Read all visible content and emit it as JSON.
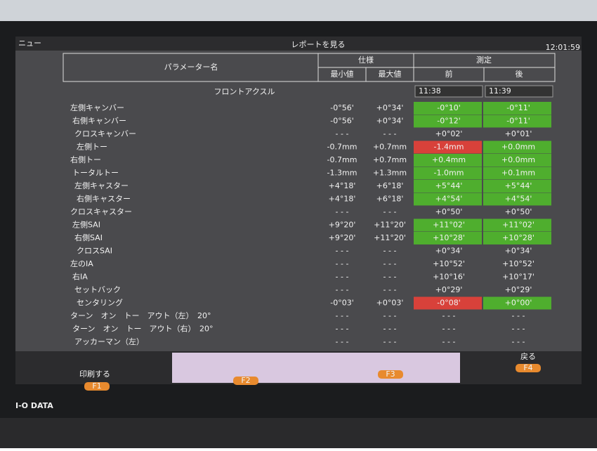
{
  "top_bar": {
    "menu": "ニュー",
    "title": "レポートを見る",
    "time": "12:01:59"
  },
  "header": {
    "param": "パラメーター名",
    "spec": "仕様",
    "min": "最小値",
    "max": "最大値",
    "measure": "測定",
    "before": "前",
    "after": "後"
  },
  "section": {
    "title": "フロントアクスル",
    "before_time": "11:38",
    "after_time": "11:39"
  },
  "rows": [
    {
      "name": "左側キャンバー",
      "min": "-0°56'",
      "max": "+0°34'",
      "before": "-0°10'",
      "after": "-0°11'",
      "before_status": "green",
      "after_status": "green"
    },
    {
      "name": "右側キャンバー",
      "min": "-0°56'",
      "max": "+0°34'",
      "before": "-0°12'",
      "after": "-0°11'",
      "before_status": "green",
      "after_status": "green"
    },
    {
      "name": "クロスキャンバー",
      "min": "- - -",
      "max": "- - -",
      "before": "+0°02'",
      "after": "+0°01'"
    },
    {
      "name": "左側トー",
      "min": "-0.7mm",
      "max": "+0.7mm",
      "before": "-1.4mm",
      "after": "+0.0mm",
      "before_status": "red",
      "after_status": "green"
    },
    {
      "name": "右側トー",
      "min": "-0.7mm",
      "max": "+0.7mm",
      "before": "+0.4mm",
      "after": "+0.0mm",
      "before_status": "green",
      "after_status": "green"
    },
    {
      "name": "トータルトー",
      "min": "-1.3mm",
      "max": "+1.3mm",
      "before": "-1.0mm",
      "after": "+0.1mm",
      "before_status": "green",
      "after_status": "green"
    },
    {
      "name": "左側キャスター",
      "min": "+4°18'",
      "max": "+6°18'",
      "before": "+5°44'",
      "after": "+5°44'",
      "before_status": "green",
      "after_status": "green"
    },
    {
      "name": "右側キャスター",
      "min": "+4°18'",
      "max": "+6°18'",
      "before": "+4°54'",
      "after": "+4°54'",
      "before_status": "green",
      "after_status": "green"
    },
    {
      "name": "クロスキャスター",
      "min": "- - -",
      "max": "- - -",
      "before": "+0°50'",
      "after": "+0°50'"
    },
    {
      "name": "左側SAI",
      "min": "+9°20'",
      "max": "+11°20'",
      "before": "+11°02'",
      "after": "+11°02'",
      "before_status": "green",
      "after_status": "green"
    },
    {
      "name": "右側SAI",
      "min": "+9°20'",
      "max": "+11°20'",
      "before": "+10°28'",
      "after": "+10°28'",
      "before_status": "green",
      "after_status": "green"
    },
    {
      "name": "クロスSAI",
      "min": "- - -",
      "max": "- - -",
      "before": "+0°34'",
      "after": "+0°34'"
    },
    {
      "name": "左のIA",
      "min": "- - -",
      "max": "- - -",
      "before": "+10°52'",
      "after": "+10°52'"
    },
    {
      "name": "右IA",
      "min": "- - -",
      "max": "- - -",
      "before": "+10°16'",
      "after": "+10°17'"
    },
    {
      "name": "セットバック",
      "min": "- - -",
      "max": "- - -",
      "before": "+0°29'",
      "after": "+0°29'"
    },
    {
      "name": "センタリング",
      "min": "-0°03'",
      "max": "+0°03'",
      "before": "-0°08'",
      "after": "+0°00'",
      "before_status": "red",
      "after_status": "green"
    },
    {
      "name": "ターン　オン　トー　アウト（左）　20°",
      "min": "- - -",
      "max": "- - -",
      "before": "- - -",
      "after": "- - -"
    },
    {
      "name": "ターン　オン　トー　アウト（右）　20°",
      "min": "- - -",
      "max": "- - -",
      "before": "- - -",
      "after": "- - -"
    },
    {
      "name": "アッカーマン（左）",
      "min": "- - -",
      "max": "- - -",
      "before": "- - -",
      "after": "- - -"
    }
  ],
  "footer": {
    "print": "印刷する",
    "f1": "F1",
    "f2": "F2",
    "f3": "F3",
    "back": "戻る",
    "f4": "F4"
  },
  "brand": "I-O DATA"
}
